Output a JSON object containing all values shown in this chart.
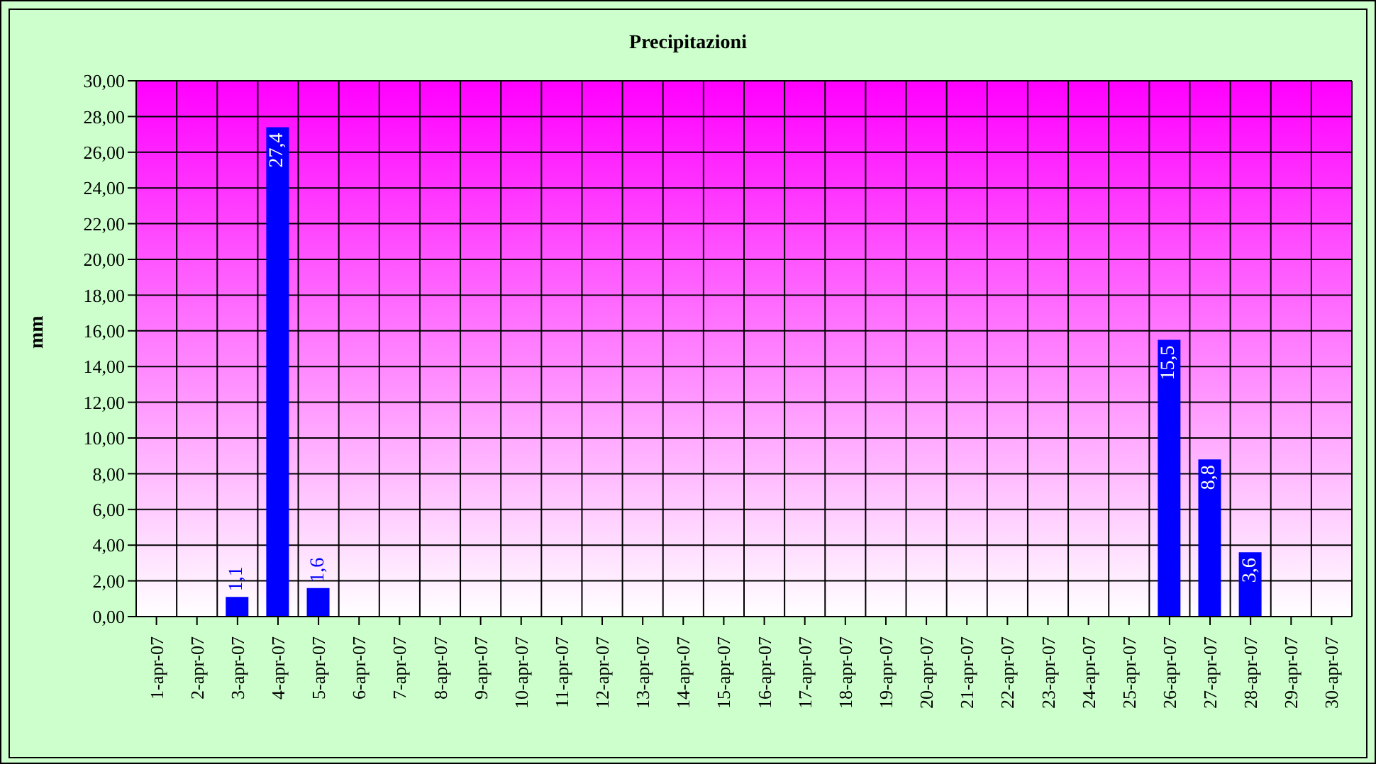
{
  "chart_data": {
    "type": "bar",
    "title": "Precipitazioni",
    "ylabel": "mm",
    "categories": [
      "1-apr-07",
      "2-apr-07",
      "3-apr-07",
      "4-apr-07",
      "5-apr-07",
      "6-apr-07",
      "7-apr-07",
      "8-apr-07",
      "9-apr-07",
      "10-apr-07",
      "11-apr-07",
      "12-apr-07",
      "13-apr-07",
      "14-apr-07",
      "15-apr-07",
      "16-apr-07",
      "17-apr-07",
      "18-apr-07",
      "19-apr-07",
      "20-apr-07",
      "21-apr-07",
      "22-apr-07",
      "23-apr-07",
      "24-apr-07",
      "25-apr-07",
      "26-apr-07",
      "27-apr-07",
      "28-apr-07",
      "29-apr-07",
      "30-apr-07"
    ],
    "values": [
      0,
      0,
      1.1,
      27.4,
      1.6,
      0,
      0,
      0,
      0,
      0,
      0,
      0,
      0,
      0,
      0,
      0,
      0,
      0,
      0,
      0,
      0,
      0,
      0,
      0,
      0,
      15.5,
      8.8,
      3.6,
      0,
      0
    ],
    "value_labels": [
      null,
      null,
      "1,1",
      "27,4",
      "1,6",
      null,
      null,
      null,
      null,
      null,
      null,
      null,
      null,
      null,
      null,
      null,
      null,
      null,
      null,
      null,
      null,
      null,
      null,
      null,
      null,
      "15,5",
      "8,8",
      "3,6",
      null,
      null
    ],
    "color": "#0000ff",
    "ylim": [
      0,
      30
    ],
    "yticks": [
      {
        "value": 0,
        "label": "0,00"
      },
      {
        "value": 2,
        "label": "2,00"
      },
      {
        "value": 4,
        "label": "4,00"
      },
      {
        "value": 6,
        "label": "6,00"
      },
      {
        "value": 8,
        "label": "8,00"
      },
      {
        "value": 10,
        "label": "10,00"
      },
      {
        "value": 12,
        "label": "12,00"
      },
      {
        "value": 14,
        "label": "14,00"
      },
      {
        "value": 16,
        "label": "16,00"
      },
      {
        "value": 18,
        "label": "18,00"
      },
      {
        "value": 20,
        "label": "20,00"
      },
      {
        "value": 22,
        "label": "22,00"
      },
      {
        "value": 24,
        "label": "24,00"
      },
      {
        "value": 26,
        "label": "26,00"
      },
      {
        "value": 28,
        "label": "28,00"
      },
      {
        "value": 30,
        "label": "30,00"
      }
    ],
    "grid": true
  }
}
